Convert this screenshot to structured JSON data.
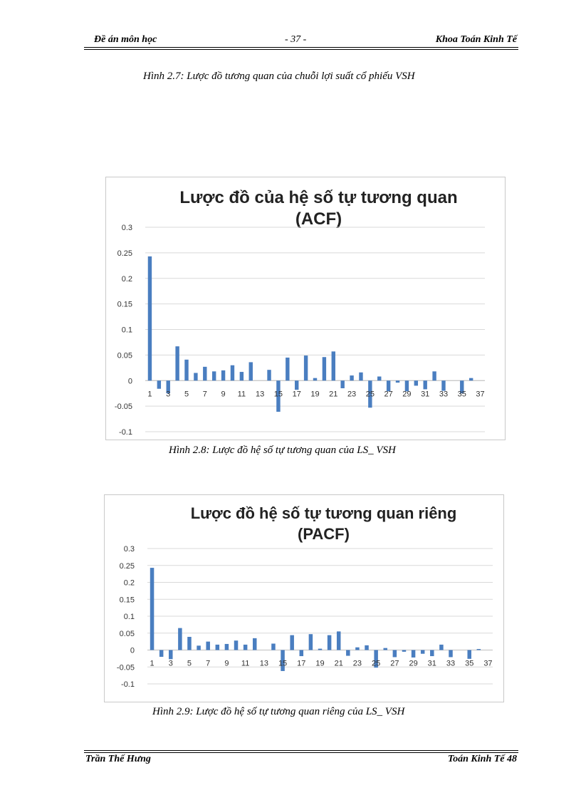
{
  "header": {
    "left": "Đề án môn học",
    "center": "- 37 -",
    "right": "Khoa Toán Kinh Tế"
  },
  "caption_27": "Hình 2.7: Lược đồ tương quan của chuỗi lợi suất cổ phiếu VSH",
  "caption_28": "Hình 2.8: Lược  đồ hệ số tự tương quan của  LS_ VSH",
  "caption_29": "Hình 2.9: Lược  đồ hệ số tự tương quan riêng của LS_ VSH",
  "footer": {
    "left": "Trần Thế Hưng",
    "right": "Toán Kinh Tế 48"
  },
  "colors": {
    "bar": "#4a7ec0",
    "grid": "#d9d9d9"
  },
  "chart_data": [
    {
      "type": "bar",
      "title_line1": "Lược đồ của hệ số tự tương quan",
      "title_line2": "(ACF)",
      "ylim": [
        -0.1,
        0.3
      ],
      "yticks": [
        "0.3",
        "0.25",
        "0.2",
        "0.15",
        "0.1",
        "0.05",
        "0",
        "-0.05",
        "-0.1"
      ],
      "xtick_labels": [
        "1",
        "3",
        "5",
        "7",
        "9",
        "11",
        "13",
        "15",
        "17",
        "19",
        "21",
        "23",
        "25",
        "27",
        "29",
        "31",
        "33",
        "35",
        "37"
      ],
      "grid": true,
      "categories": [
        "1",
        "2",
        "3",
        "4",
        "5",
        "6",
        "7",
        "8",
        "9",
        "10",
        "11",
        "12",
        "13",
        "14",
        "15",
        "16",
        "17",
        "18",
        "19",
        "20",
        "21",
        "22",
        "23",
        "24",
        "25",
        "26",
        "27",
        "28",
        "29",
        "30",
        "31",
        "32",
        "33",
        "34",
        "35",
        "36",
        "37"
      ],
      "values": [
        0.243,
        -0.016,
        -0.025,
        0.067,
        0.041,
        0.015,
        0.027,
        0.018,
        0.02,
        0.03,
        0.017,
        0.036,
        0.0,
        0.021,
        -0.061,
        0.045,
        -0.018,
        0.049,
        0.005,
        0.046,
        0.057,
        -0.015,
        0.01,
        0.016,
        -0.053,
        0.008,
        -0.021,
        -0.004,
        -0.021,
        -0.01,
        -0.017,
        0.018,
        -0.02,
        0.0,
        -0.025,
        0.005,
        0.0
      ]
    },
    {
      "type": "bar",
      "title_line1": "Lược đồ hệ số tự tương quan riêng",
      "title_line2": "(PACF)",
      "ylim": [
        -0.1,
        0.3
      ],
      "yticks": [
        "0.3",
        "0.25",
        "0.2",
        "0.15",
        "0.1",
        "0.05",
        "0",
        "-0.05",
        "-0.1"
      ],
      "xtick_labels": [
        "1",
        "3",
        "5",
        "7",
        "9",
        "11",
        "13",
        "15",
        "17",
        "19",
        "21",
        "23",
        "25",
        "27",
        "29",
        "31",
        "33",
        "35",
        "37"
      ],
      "grid": true,
      "categories": [
        "1",
        "2",
        "3",
        "4",
        "5",
        "6",
        "7",
        "8",
        "9",
        "10",
        "11",
        "12",
        "13",
        "14",
        "15",
        "16",
        "17",
        "18",
        "19",
        "20",
        "21",
        "22",
        "23",
        "24",
        "25",
        "26",
        "27",
        "28",
        "29",
        "30",
        "31",
        "32",
        "33",
        "34",
        "35",
        "36",
        "37"
      ],
      "values": [
        0.243,
        -0.02,
        -0.027,
        0.065,
        0.039,
        0.013,
        0.025,
        0.016,
        0.018,
        0.028,
        0.016,
        0.035,
        0.0,
        0.019,
        -0.062,
        0.044,
        -0.018,
        0.047,
        0.004,
        0.044,
        0.055,
        -0.017,
        0.008,
        0.014,
        -0.052,
        0.006,
        -0.021,
        -0.005,
        -0.022,
        -0.011,
        -0.018,
        0.016,
        -0.021,
        0.0,
        -0.026,
        0.003,
        0.0
      ]
    }
  ]
}
